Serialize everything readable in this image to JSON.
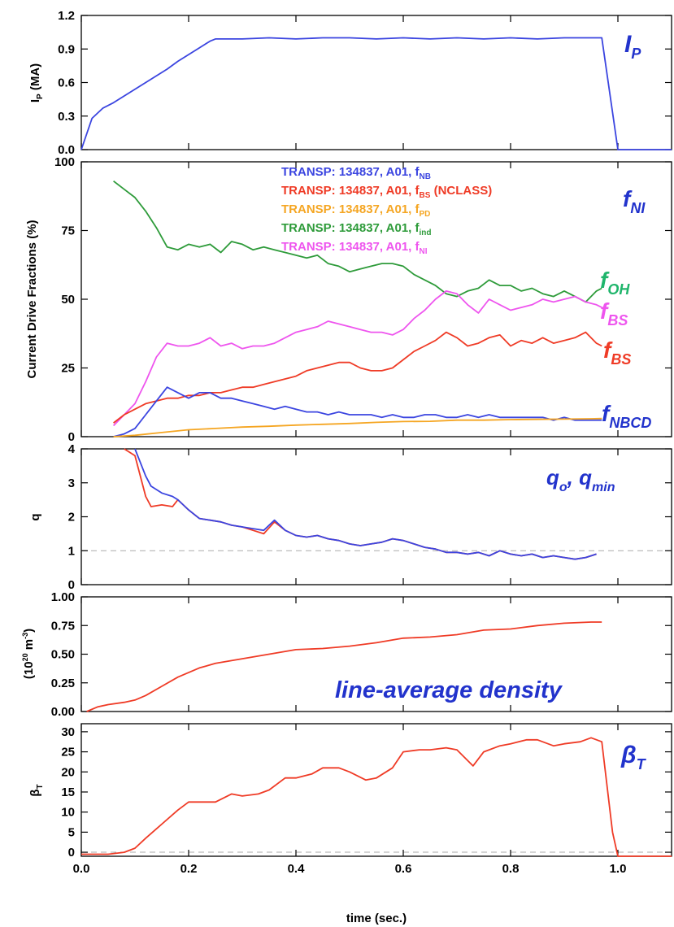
{
  "colors": {
    "blue": "#3b45e0",
    "red": "#ef3b26",
    "orange": "#f5a623",
    "green": "#2e9b3a",
    "magenta": "#ee55ee",
    "teal": "#1fb56b",
    "gray": "#aaaaaa",
    "anno_blue": "#2233cc"
  },
  "xaxis": {
    "label": "time (sec.)",
    "ticks": [
      "0.0",
      "0.2",
      "0.4",
      "0.6",
      "0.8",
      "1.0"
    ],
    "range": [
      0.0,
      1.1
    ]
  },
  "chart_data": [
    {
      "type": "line",
      "ylabel_main": "I",
      "ylabel_sub": "P",
      "ylabel_tail": " (MA)",
      "ylim": [
        0.0,
        1.2
      ],
      "yticks": [
        "0.0",
        "0.3",
        "0.6",
        "0.9",
        "1.2"
      ],
      "annotations": [
        {
          "main": "I",
          "sub": "P",
          "color": "#2233cc"
        }
      ],
      "series": [
        {
          "color": "#3b45e0",
          "x": [
            0.0,
            0.02,
            0.04,
            0.06,
            0.08,
            0.1,
            0.12,
            0.14,
            0.16,
            0.18,
            0.2,
            0.22,
            0.24,
            0.25,
            0.3,
            0.35,
            0.4,
            0.45,
            0.5,
            0.55,
            0.6,
            0.65,
            0.7,
            0.75,
            0.8,
            0.85,
            0.9,
            0.95,
            0.97,
            1.0,
            1.1
          ],
          "y": [
            0.0,
            0.28,
            0.37,
            0.42,
            0.48,
            0.54,
            0.6,
            0.66,
            0.72,
            0.79,
            0.85,
            0.91,
            0.97,
            0.99,
            0.99,
            1.0,
            0.99,
            1.0,
            1.0,
            0.99,
            1.0,
            0.99,
            1.0,
            0.99,
            1.0,
            0.99,
            1.0,
            1.0,
            1.0,
            0.0,
            0.0
          ]
        }
      ]
    },
    {
      "type": "line",
      "ylabel": "Current Drive Fractions (%)",
      "ylim": [
        0,
        100
      ],
      "yticks": [
        "0",
        "25",
        "50",
        "75",
        "100"
      ],
      "legend": [
        {
          "text": "TRANSP: 134837, A01, f",
          "sub": "NB",
          "tail": "",
          "color": "#3b45e0"
        },
        {
          "text": "TRANSP: 134837, A01, f",
          "sub": "BS",
          "tail": " (NCLASS)",
          "color": "#ef3b26"
        },
        {
          "text": "TRANSP: 134837, A01, f",
          "sub": "PD",
          "tail": "",
          "color": "#f5a623"
        },
        {
          "text": "TRANSP: 134837, A01, f",
          "sub": "ind",
          "tail": "",
          "color": "#2e9b3a"
        },
        {
          "text": "TRANSP: 134837, A01, f",
          "sub": "NI",
          "tail": "",
          "color": "#ee55ee"
        }
      ],
      "annotations": [
        {
          "main": "f",
          "sub": "NI",
          "color": "#2233cc"
        },
        {
          "main": "f",
          "sub": "OH",
          "color": "#1fb56b"
        },
        {
          "main": "f",
          "sub": "BS",
          "color": "#ee55ee"
        },
        {
          "main": "f",
          "sub": "BS",
          "color": "#ef3b26"
        },
        {
          "main": "f",
          "sub": "NBCD",
          "color": "#2233cc"
        }
      ],
      "series": [
        {
          "color": "#2e9b3a",
          "x": [
            0.06,
            0.08,
            0.1,
            0.12,
            0.14,
            0.16,
            0.18,
            0.2,
            0.22,
            0.24,
            0.26,
            0.28,
            0.3,
            0.32,
            0.34,
            0.36,
            0.38,
            0.4,
            0.42,
            0.44,
            0.46,
            0.48,
            0.5,
            0.52,
            0.54,
            0.56,
            0.58,
            0.6,
            0.62,
            0.64,
            0.66,
            0.68,
            0.7,
            0.72,
            0.74,
            0.76,
            0.78,
            0.8,
            0.82,
            0.84,
            0.86,
            0.88,
            0.9,
            0.92,
            0.94,
            0.96,
            0.97
          ],
          "y": [
            93,
            90,
            87,
            82,
            76,
            69,
            68,
            70,
            69,
            70,
            67,
            71,
            70,
            68,
            69,
            68,
            67,
            66,
            65,
            66,
            63,
            62,
            60,
            61,
            62,
            63,
            63,
            62,
            59,
            57,
            55,
            52,
            51,
            53,
            54,
            57,
            55,
            55,
            53,
            54,
            52,
            51,
            53,
            51,
            49,
            53,
            54
          ]
        },
        {
          "color": "#ee55ee",
          "x": [
            0.06,
            0.08,
            0.1,
            0.12,
            0.14,
            0.16,
            0.18,
            0.2,
            0.22,
            0.24,
            0.26,
            0.28,
            0.3,
            0.32,
            0.34,
            0.36,
            0.38,
            0.4,
            0.42,
            0.44,
            0.46,
            0.48,
            0.5,
            0.52,
            0.54,
            0.56,
            0.58,
            0.6,
            0.62,
            0.64,
            0.66,
            0.68,
            0.7,
            0.72,
            0.74,
            0.76,
            0.78,
            0.8,
            0.82,
            0.84,
            0.86,
            0.88,
            0.9,
            0.92,
            0.94,
            0.96,
            0.97
          ],
          "y": [
            4,
            8,
            12,
            20,
            29,
            34,
            33,
            33,
            34,
            36,
            33,
            34,
            32,
            33,
            33,
            34,
            36,
            38,
            39,
            40,
            42,
            41,
            40,
            39,
            38,
            38,
            37,
            39,
            43,
            46,
            50,
            53,
            52,
            48,
            45,
            50,
            48,
            46,
            47,
            48,
            50,
            49,
            50,
            51,
            49,
            48,
            47
          ]
        },
        {
          "color": "#ef3b26",
          "x": [
            0.06,
            0.08,
            0.1,
            0.12,
            0.14,
            0.16,
            0.18,
            0.2,
            0.22,
            0.24,
            0.26,
            0.28,
            0.3,
            0.32,
            0.34,
            0.36,
            0.38,
            0.4,
            0.42,
            0.44,
            0.46,
            0.48,
            0.5,
            0.52,
            0.54,
            0.56,
            0.58,
            0.6,
            0.62,
            0.64,
            0.66,
            0.68,
            0.7,
            0.72,
            0.74,
            0.76,
            0.78,
            0.8,
            0.82,
            0.84,
            0.86,
            0.88,
            0.9,
            0.92,
            0.94,
            0.96,
            0.97
          ],
          "y": [
            5,
            8,
            10,
            12,
            13,
            14,
            14,
            15,
            15,
            16,
            16,
            17,
            18,
            18,
            19,
            20,
            21,
            22,
            24,
            25,
            26,
            27,
            27,
            25,
            24,
            24,
            25,
            28,
            31,
            33,
            35,
            38,
            36,
            33,
            34,
            36,
            37,
            33,
            35,
            34,
            36,
            34,
            35,
            36,
            38,
            34,
            33
          ]
        },
        {
          "color": "#3b45e0",
          "x": [
            0.06,
            0.08,
            0.1,
            0.12,
            0.14,
            0.16,
            0.18,
            0.2,
            0.22,
            0.24,
            0.26,
            0.28,
            0.3,
            0.32,
            0.34,
            0.36,
            0.38,
            0.4,
            0.42,
            0.44,
            0.46,
            0.48,
            0.5,
            0.52,
            0.54,
            0.56,
            0.58,
            0.6,
            0.62,
            0.64,
            0.66,
            0.68,
            0.7,
            0.72,
            0.74,
            0.76,
            0.78,
            0.8,
            0.82,
            0.84,
            0.86,
            0.88,
            0.9,
            0.92,
            0.94,
            0.96,
            0.97
          ],
          "y": [
            0,
            1,
            3,
            8,
            13,
            18,
            16,
            14,
            16,
            16,
            14,
            14,
            13,
            12,
            11,
            10,
            11,
            10,
            9,
            9,
            8,
            9,
            8,
            8,
            8,
            7,
            8,
            7,
            7,
            8,
            8,
            7,
            7,
            8,
            7,
            8,
            7,
            7,
            7,
            7,
            7,
            6,
            7,
            6,
            6,
            6,
            6
          ]
        },
        {
          "color": "#f5a623",
          "x": [
            0.06,
            0.1,
            0.15,
            0.2,
            0.25,
            0.3,
            0.35,
            0.4,
            0.45,
            0.5,
            0.55,
            0.6,
            0.65,
            0.7,
            0.75,
            0.8,
            0.85,
            0.9,
            0.95,
            0.97
          ],
          "y": [
            0,
            0.5,
            1.5,
            2.5,
            3.0,
            3.5,
            3.8,
            4.2,
            4.5,
            4.8,
            5.2,
            5.5,
            5.6,
            6.0,
            6.0,
            6.2,
            6.3,
            6.4,
            6.5,
            6.6
          ]
        }
      ]
    },
    {
      "type": "line",
      "ylabel": "q",
      "ylim": [
        0,
        4
      ],
      "yticks": [
        "0",
        "1",
        "2",
        "3",
        "4"
      ],
      "annotations": [
        {
          "text": "q",
          "sub": "o",
          "text2": ", q",
          "sub2": "min",
          "color": "#2233cc"
        }
      ],
      "reference_line": {
        "y": 1,
        "style": "dashed",
        "color": "#aaaaaa"
      },
      "series": [
        {
          "color": "#ef3b26",
          "x": [
            0.08,
            0.1,
            0.12,
            0.13,
            0.15,
            0.17,
            0.18,
            0.2,
            0.22,
            0.24,
            0.26,
            0.28,
            0.3,
            0.32,
            0.34,
            0.36,
            0.38,
            0.4,
            0.42,
            0.44,
            0.46,
            0.48,
            0.5,
            0.52,
            0.54,
            0.56,
            0.58,
            0.6,
            0.62,
            0.64,
            0.66,
            0.68,
            0.7,
            0.72,
            0.74,
            0.76,
            0.78,
            0.8,
            0.82,
            0.84,
            0.86,
            0.88,
            0.9,
            0.92,
            0.94,
            0.96
          ],
          "y": [
            4.0,
            3.8,
            2.6,
            2.3,
            2.35,
            2.3,
            2.5,
            2.2,
            1.95,
            1.9,
            1.85,
            1.75,
            1.7,
            1.6,
            1.5,
            1.85,
            1.6,
            1.45,
            1.4,
            1.45,
            1.35,
            1.3,
            1.2,
            1.15,
            1.2,
            1.25,
            1.35,
            1.3,
            1.2,
            1.1,
            1.05,
            0.95,
            0.95,
            0.9,
            0.95,
            0.85,
            1.0,
            0.9,
            0.85,
            0.9,
            0.8,
            0.85,
            0.8,
            0.75,
            0.8,
            0.9
          ]
        },
        {
          "color": "#3b45e0",
          "x": [
            0.1,
            0.12,
            0.13,
            0.15,
            0.17,
            0.18,
            0.2,
            0.22,
            0.24,
            0.26,
            0.28,
            0.3,
            0.32,
            0.34,
            0.36,
            0.38,
            0.4,
            0.42,
            0.44,
            0.46,
            0.48,
            0.5,
            0.52,
            0.54,
            0.56,
            0.58,
            0.6,
            0.62,
            0.64,
            0.66,
            0.68,
            0.7,
            0.72,
            0.74,
            0.76,
            0.78,
            0.8,
            0.82,
            0.84,
            0.86,
            0.88,
            0.9,
            0.92,
            0.94,
            0.96
          ],
          "y": [
            4.0,
            3.2,
            2.9,
            2.7,
            2.6,
            2.5,
            2.2,
            1.95,
            1.9,
            1.85,
            1.75,
            1.7,
            1.65,
            1.6,
            1.9,
            1.6,
            1.45,
            1.4,
            1.45,
            1.35,
            1.3,
            1.2,
            1.15,
            1.2,
            1.25,
            1.35,
            1.3,
            1.2,
            1.1,
            1.05,
            0.95,
            0.95,
            0.9,
            0.95,
            0.85,
            1.0,
            0.9,
            0.85,
            0.9,
            0.8,
            0.85,
            0.8,
            0.75,
            0.8,
            0.9
          ]
        }
      ]
    },
    {
      "type": "line",
      "ylabel": "(10^20 m^-3)",
      "ylim": [
        0.0,
        1.0
      ],
      "yticks": [
        "0.00",
        "0.25",
        "0.50",
        "0.75",
        "1.00"
      ],
      "annotations": [
        {
          "text": "line-average density",
          "color": "#2233cc"
        }
      ],
      "series": [
        {
          "color": "#ef3b26",
          "x": [
            0.01,
            0.03,
            0.05,
            0.08,
            0.1,
            0.12,
            0.15,
            0.18,
            0.2,
            0.22,
            0.25,
            0.3,
            0.35,
            0.4,
            0.45,
            0.5,
            0.55,
            0.6,
            0.65,
            0.7,
            0.75,
            0.8,
            0.85,
            0.9,
            0.95,
            0.97
          ],
          "y": [
            0.0,
            0.04,
            0.06,
            0.08,
            0.1,
            0.14,
            0.22,
            0.3,
            0.34,
            0.38,
            0.42,
            0.46,
            0.5,
            0.54,
            0.55,
            0.57,
            0.6,
            0.64,
            0.65,
            0.67,
            0.71,
            0.72,
            0.75,
            0.77,
            0.78,
            0.78
          ]
        }
      ]
    },
    {
      "type": "line",
      "ylabel_main": "β",
      "ylabel_sub": "T",
      "ylim": [
        -1,
        32
      ],
      "yticks": [
        "0",
        "5",
        "10",
        "15",
        "20",
        "25",
        "30"
      ],
      "annotations": [
        {
          "main": "β",
          "sub": "T",
          "color": "#2233cc"
        }
      ],
      "reference_line": {
        "y": 0,
        "style": "dashed",
        "color": "#aaaaaa"
      },
      "series": [
        {
          "color": "#ef3b26",
          "x": [
            0.0,
            0.05,
            0.08,
            0.1,
            0.12,
            0.15,
            0.18,
            0.2,
            0.22,
            0.25,
            0.28,
            0.3,
            0.33,
            0.35,
            0.38,
            0.4,
            0.43,
            0.45,
            0.48,
            0.5,
            0.53,
            0.55,
            0.58,
            0.6,
            0.63,
            0.65,
            0.68,
            0.7,
            0.73,
            0.75,
            0.78,
            0.8,
            0.83,
            0.85,
            0.88,
            0.9,
            0.93,
            0.95,
            0.97,
            0.99,
            1.0,
            1.1
          ],
          "y": [
            -0.5,
            -0.5,
            0.0,
            1.0,
            3.5,
            7.0,
            10.5,
            12.5,
            12.5,
            12.5,
            14.5,
            14.0,
            14.5,
            15.5,
            18.5,
            18.5,
            19.5,
            21.0,
            21.0,
            20.0,
            18.0,
            18.5,
            21.0,
            25.0,
            25.5,
            25.5,
            26.0,
            25.5,
            21.5,
            25.0,
            26.5,
            27.0,
            28.0,
            28.0,
            26.5,
            27.0,
            27.5,
            28.5,
            27.5,
            5.0,
            -1.0,
            -1.0
          ]
        }
      ]
    }
  ]
}
